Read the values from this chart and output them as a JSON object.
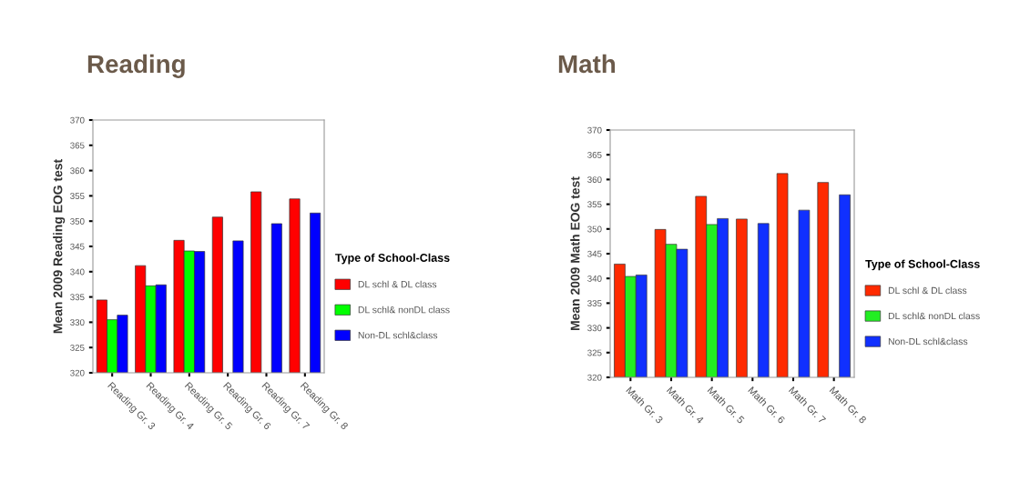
{
  "chart_data": [
    {
      "type": "bar",
      "title": "Reading",
      "ylabel": "Mean 2009 Reading EOG test",
      "legend_title": "Type of School-Class",
      "legend": "right",
      "grid": false,
      "categories": [
        "Reading Gr. 3",
        "Reading Gr. 4",
        "Reading Gr. 5",
        "Reading Gr. 6",
        "Reading Gr. 7",
        "Reading Gr. 8"
      ],
      "ylim": [
        320,
        370
      ],
      "yticks": [
        320,
        325,
        330,
        335,
        340,
        345,
        350,
        355,
        360,
        365,
        370
      ],
      "series": [
        {
          "name": "DL schl & DL class",
          "color": "#ff0000",
          "values": [
            334.4,
            341.2,
            346.2,
            350.8,
            355.8,
            354.4
          ]
        },
        {
          "name": "DL schl& nonDL class",
          "color": "#00ff00",
          "values": [
            330.5,
            337.2,
            344.1,
            null,
            null,
            null
          ]
        },
        {
          "name": "Non-DL schl&class",
          "color": "#0000ff",
          "values": [
            331.4,
            337.4,
            344.0,
            346.1,
            349.5,
            351.6
          ]
        }
      ]
    },
    {
      "type": "bar",
      "title": "Math",
      "ylabel": "Mean 2009 Math EOG test",
      "legend_title": "Type of School-Class",
      "legend": "right",
      "grid": false,
      "categories": [
        "Math Gr. 3",
        "Math Gr. 4",
        "Math Gr. 5",
        "Math Gr. 6",
        "Math Gr. 7",
        "Math Gr. 8"
      ],
      "ylim": [
        320,
        370
      ],
      "yticks": [
        320,
        325,
        330,
        335,
        340,
        345,
        350,
        355,
        360,
        365,
        370
      ],
      "series": [
        {
          "name": "DL schl & DL class",
          "color": "#ff2a00",
          "values": [
            342.9,
            349.9,
            356.6,
            352.0,
            361.2,
            359.4
          ]
        },
        {
          "name": "DL schl& nonDL class",
          "color": "#22ee22",
          "values": [
            340.4,
            346.9,
            350.9,
            null,
            null,
            null
          ]
        },
        {
          "name": "Non-DL schl&class",
          "color": "#1030ff",
          "values": [
            340.7,
            345.9,
            352.1,
            351.1,
            353.8,
            356.9
          ]
        }
      ]
    }
  ]
}
